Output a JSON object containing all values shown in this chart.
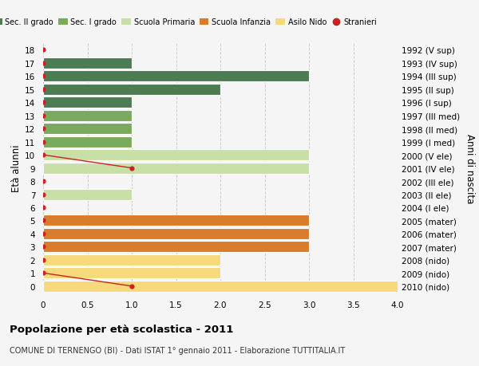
{
  "ages": [
    18,
    17,
    16,
    15,
    14,
    13,
    12,
    11,
    10,
    9,
    8,
    7,
    6,
    5,
    4,
    3,
    2,
    1,
    0
  ],
  "right_labels": [
    "1992 (V sup)",
    "1993 (IV sup)",
    "1994 (III sup)",
    "1995 (II sup)",
    "1996 (I sup)",
    "1997 (III med)",
    "1998 (II med)",
    "1999 (I med)",
    "2000 (V ele)",
    "2001 (IV ele)",
    "2002 (III ele)",
    "2003 (II ele)",
    "2004 (I ele)",
    "2005 (mater)",
    "2006 (mater)",
    "2007 (mater)",
    "2008 (nido)",
    "2009 (nido)",
    "2010 (nido)"
  ],
  "bar_values": [
    0,
    1,
    3,
    2,
    1,
    1,
    1,
    1,
    3,
    3,
    0,
    1,
    0,
    3,
    3,
    3,
    2,
    2,
    4
  ],
  "bar_colors": [
    "#4d7c52",
    "#4d7c52",
    "#4d7c52",
    "#4d7c52",
    "#4d7c52",
    "#7aaa5e",
    "#7aaa5e",
    "#7aaa5e",
    "#c8dfa8",
    "#c8dfa8",
    "#c8dfa8",
    "#c8dfa8",
    "#c8dfa8",
    "#d97c2b",
    "#d97c2b",
    "#d97c2b",
    "#f5d97a",
    "#f5d97a",
    "#f5d97a"
  ],
  "stranieri_dots_ages": [
    18,
    17,
    16,
    15,
    14,
    13,
    12,
    11,
    10,
    9,
    8,
    7,
    6,
    5,
    4,
    3,
    2,
    1,
    0
  ],
  "stranieri_dots_vals": [
    0,
    0,
    0,
    0,
    0,
    0,
    0,
    0,
    0,
    1,
    0,
    0,
    0,
    0,
    0,
    0,
    0,
    0,
    1
  ],
  "stranieri_line_segments": [
    [
      [
        10,
        9
      ],
      [
        0,
        1
      ]
    ],
    [
      [
        1,
        0
      ],
      [
        0,
        1
      ]
    ]
  ],
  "legend_labels": [
    "Sec. II grado",
    "Sec. I grado",
    "Scuola Primaria",
    "Scuola Infanzia",
    "Asilo Nido",
    "Stranieri"
  ],
  "legend_colors": [
    "#4d7c52",
    "#7aaa5e",
    "#c8dfa8",
    "#d97c2b",
    "#f5d97a",
    "#cc2222"
  ],
  "title": "Popolazione per età scolastica - 2011",
  "subtitle": "COMUNE DI TERNENGO (BI) - Dati ISTAT 1° gennaio 2011 - Elaborazione TUTTITALIA.IT",
  "ylabel_left": "Età alunni",
  "ylabel_right": "Anni di nascita",
  "xlim": [
    0,
    4.0
  ],
  "xticks": [
    0,
    0.5,
    1.0,
    1.5,
    2.0,
    2.5,
    3.0,
    3.5,
    4.0
  ],
  "bg_color": "#f5f5f5",
  "grid_color": "#cccccc",
  "bar_height": 0.85,
  "line_color": "#cc2222"
}
